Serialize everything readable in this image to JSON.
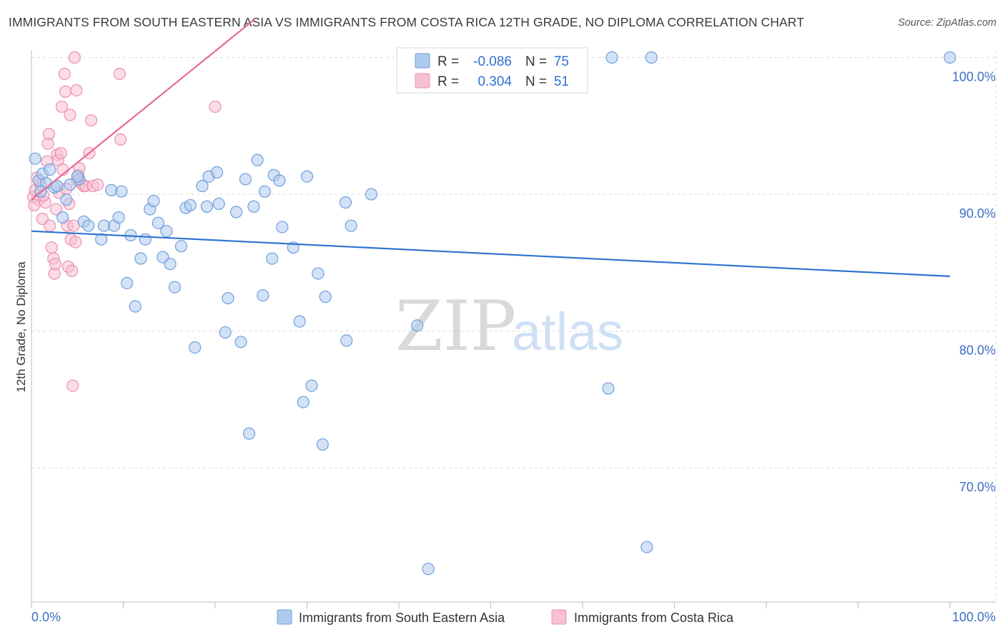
{
  "title": "IMMIGRANTS FROM SOUTH EASTERN ASIA VS IMMIGRANTS FROM COSTA RICA 12TH GRADE, NO DIPLOMA CORRELATION CHART",
  "source": "Source: ZipAtlas.com",
  "watermark": {
    "zip": "ZIP",
    "atlas": "atlas"
  },
  "colors": {
    "blue_fill": "#aecbef",
    "blue_stroke": "#6f9fdc",
    "blue_line": "#2f74d0",
    "pink_fill": "#f7c0d3",
    "pink_stroke": "#ec8fb0",
    "pink_line": "#e56b97",
    "tick_text": "#3d6fc4",
    "grid": "#dcdcdc"
  },
  "legend": {
    "r_label": "R =",
    "n_label": "N =",
    "series": [
      {
        "name": "Immigrants from South Eastern Asia",
        "r": "-0.086",
        "n": "75",
        "color": "blue"
      },
      {
        "name": "Immigrants from Costa Rica",
        "r": "0.304",
        "n": "51",
        "color": "pink"
      }
    ]
  },
  "chart_data": {
    "type": "scatter",
    "title": "IMMIGRANTS FROM SOUTH EASTERN ASIA VS IMMIGRANTS FROM COSTA RICA 12TH GRADE, NO DIPLOMA CORRELATION CHART",
    "xlabel": "",
    "ylabel": "12th Grade, No Diploma",
    "xlim": [
      0,
      100
    ],
    "ylim": [
      61.5,
      102.5
    ],
    "x_tick_labels": {
      "min": "0.0%",
      "max": "100.0%"
    },
    "y_ticks": [
      {
        "value": 70,
        "label": "70.0%"
      },
      {
        "value": 80,
        "label": "80.0%"
      },
      {
        "value": 90,
        "label": "90.0%"
      },
      {
        "value": 100,
        "label": "100.0%"
      }
    ],
    "grid": true,
    "series": [
      {
        "name": "Immigrants from South Eastern Asia",
        "color": "blue",
        "trend": {
          "x": [
            0,
            100
          ],
          "y": [
            87.3,
            84.0
          ]
        },
        "points": [
          [
            0.4,
            92.6
          ],
          [
            0.8,
            91.0
          ],
          [
            1.2,
            91.5
          ],
          [
            1.6,
            90.8
          ],
          [
            2.0,
            91.8
          ],
          [
            2.5,
            90.5
          ],
          [
            3.4,
            88.3
          ],
          [
            3.8,
            89.6
          ],
          [
            4.2,
            90.7
          ],
          [
            5.2,
            91.1
          ],
          [
            5.7,
            88.0
          ],
          [
            6.2,
            87.7
          ],
          [
            7.6,
            86.7
          ],
          [
            7.9,
            87.7
          ],
          [
            8.7,
            90.3
          ],
          [
            9.0,
            87.7
          ],
          [
            9.5,
            88.3
          ],
          [
            9.8,
            90.2
          ],
          [
            10.4,
            83.5
          ],
          [
            10.8,
            87.0
          ],
          [
            11.3,
            81.8
          ],
          [
            11.9,
            85.3
          ],
          [
            12.4,
            86.7
          ],
          [
            12.9,
            88.9
          ],
          [
            13.3,
            89.5
          ],
          [
            13.8,
            87.9
          ],
          [
            14.3,
            85.4
          ],
          [
            14.7,
            87.3
          ],
          [
            15.1,
            84.9
          ],
          [
            15.6,
            83.2
          ],
          [
            16.3,
            86.2
          ],
          [
            16.8,
            89.0
          ],
          [
            17.3,
            89.2
          ],
          [
            17.8,
            78.8
          ],
          [
            18.6,
            90.6
          ],
          [
            19.1,
            89.1
          ],
          [
            19.3,
            91.3
          ],
          [
            20.2,
            91.6
          ],
          [
            20.4,
            89.3
          ],
          [
            21.1,
            79.9
          ],
          [
            21.4,
            82.4
          ],
          [
            22.3,
            88.7
          ],
          [
            22.8,
            79.2
          ],
          [
            23.3,
            91.1
          ],
          [
            23.7,
            72.5
          ],
          [
            24.2,
            89.1
          ],
          [
            24.6,
            92.5
          ],
          [
            25.2,
            82.6
          ],
          [
            25.4,
            90.2
          ],
          [
            26.2,
            85.3
          ],
          [
            26.4,
            91.4
          ],
          [
            27.0,
            91.0
          ],
          [
            27.3,
            87.6
          ],
          [
            28.5,
            86.1
          ],
          [
            29.2,
            80.7
          ],
          [
            29.6,
            74.8
          ],
          [
            30.0,
            91.3
          ],
          [
            30.5,
            76.0
          ],
          [
            31.2,
            84.2
          ],
          [
            31.7,
            71.7
          ],
          [
            32.0,
            82.5
          ],
          [
            34.2,
            89.4
          ],
          [
            34.3,
            79.3
          ],
          [
            34.8,
            87.7
          ],
          [
            37.0,
            90.0
          ],
          [
            42.0,
            80.4
          ],
          [
            43.2,
            62.6
          ],
          [
            62.8,
            75.8
          ],
          [
            63.2,
            100.0
          ],
          [
            67.0,
            64.2
          ],
          [
            67.5,
            100.0
          ],
          [
            100.0,
            100.0
          ],
          [
            1.0,
            90.2
          ],
          [
            2.8,
            90.6
          ],
          [
            5.0,
            91.3
          ]
        ]
      },
      {
        "name": "Immigrants from Costa Rica",
        "color": "pink",
        "trend": {
          "x": [
            0,
            24.3
          ],
          "y": [
            89.6,
            102.8
          ]
        },
        "points": [
          [
            0.2,
            89.8
          ],
          [
            0.4,
            90.3
          ],
          [
            0.6,
            91.2
          ],
          [
            0.8,
            89.6
          ],
          [
            1.0,
            90.7
          ],
          [
            1.2,
            88.2
          ],
          [
            1.5,
            89.4
          ],
          [
            1.7,
            92.4
          ],
          [
            1.8,
            93.7
          ],
          [
            1.9,
            94.4
          ],
          [
            2.0,
            87.7
          ],
          [
            2.2,
            86.1
          ],
          [
            2.4,
            85.3
          ],
          [
            2.5,
            84.2
          ],
          [
            2.6,
            84.9
          ],
          [
            2.7,
            88.9
          ],
          [
            2.8,
            92.9
          ],
          [
            2.9,
            92.5
          ],
          [
            3.0,
            90.1
          ],
          [
            3.2,
            93.0
          ],
          [
            3.3,
            96.4
          ],
          [
            3.4,
            91.8
          ],
          [
            3.6,
            98.8
          ],
          [
            3.7,
            97.5
          ],
          [
            3.8,
            90.4
          ],
          [
            3.9,
            87.7
          ],
          [
            4.0,
            84.7
          ],
          [
            4.1,
            89.3
          ],
          [
            4.2,
            95.8
          ],
          [
            4.3,
            86.7
          ],
          [
            4.4,
            84.4
          ],
          [
            4.5,
            76.0
          ],
          [
            4.6,
            87.7
          ],
          [
            4.7,
            100.0
          ],
          [
            4.8,
            86.5
          ],
          [
            4.9,
            97.6
          ],
          [
            5.0,
            91.0
          ],
          [
            5.1,
            91.4
          ],
          [
            5.2,
            91.9
          ],
          [
            5.4,
            90.8
          ],
          [
            5.7,
            90.6
          ],
          [
            5.9,
            90.6
          ],
          [
            6.3,
            93.0
          ],
          [
            6.5,
            95.4
          ],
          [
            6.7,
            90.6
          ],
          [
            7.2,
            90.7
          ],
          [
            9.6,
            98.8
          ],
          [
            9.7,
            94.0
          ],
          [
            20.0,
            96.4
          ],
          [
            0.3,
            89.2
          ],
          [
            1.3,
            89.9
          ]
        ]
      }
    ]
  }
}
